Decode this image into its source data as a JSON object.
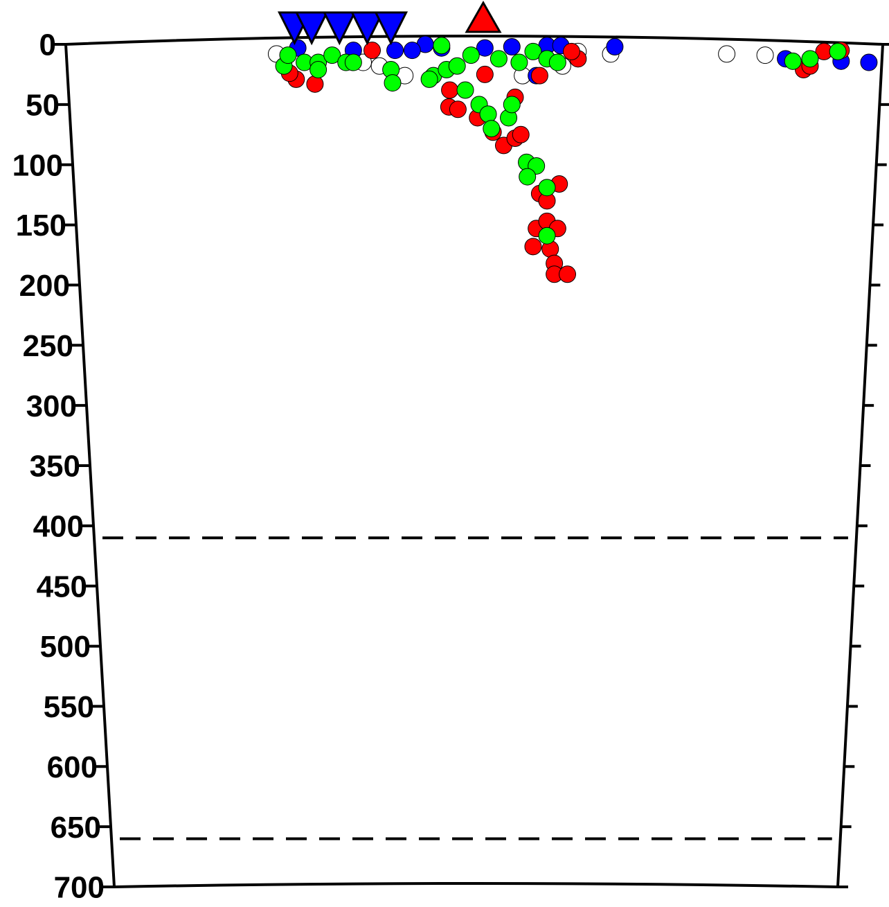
{
  "chart_data": {
    "type": "scatter",
    "xlim": [
      0,
      100
    ],
    "ylim": [
      0,
      700
    ],
    "yticks": [
      0,
      50,
      100,
      150,
      200,
      250,
      300,
      350,
      400,
      450,
      500,
      550,
      600,
      650,
      700
    ],
    "inverted_y": true,
    "reference_lines": [
      410,
      660
    ],
    "series": [
      {
        "color": "#ffffff",
        "x": [
          25.8,
          36.4,
          38.4,
          41.5,
          55.9,
          60.8,
          62.7,
          66.7,
          80.9,
          85.6
        ],
        "values": [
          8,
          15,
          18,
          26,
          26,
          18,
          6,
          8,
          8,
          9
        ]
      },
      {
        "color": "#0000ff",
        "x": [
          44,
          28.4,
          35.2,
          40.3,
          42.4,
          46,
          51.3,
          54.6,
          58.9,
          60.6,
          57.6,
          67.2,
          88.1,
          94.9,
          98.3
        ],
        "values": [
          0,
          3,
          5,
          5,
          5,
          3,
          3,
          2,
          1,
          1,
          26,
          2,
          12,
          14,
          15
        ]
      },
      {
        "color": "#ff0000",
        "x": [
          37.5,
          28.2,
          30.5,
          27.4,
          47,
          46.9,
          48,
          51.3,
          50.4,
          52.3,
          53.6,
          55,
          55,
          55.7,
          58,
          60.4,
          58,
          58.9,
          57.6,
          58.9,
          60.2,
          57.2,
          59.3,
          59.8,
          59.8,
          61.4,
          62.7,
          61.9,
          90.3,
          91.1,
          92.8,
          94.9
        ],
        "values": [
          5,
          29,
          33,
          24,
          38,
          52,
          54,
          25,
          61,
          73,
          84,
          44,
          78,
          75,
          26,
          116,
          124,
          130,
          153,
          147,
          153,
          168,
          170,
          182,
          191,
          191,
          12,
          6,
          21,
          18,
          6,
          5
        ]
      },
      {
        "color": "#00ff00",
        "x": [
          26.7,
          27.2,
          29.2,
          30.9,
          32.6,
          34.3,
          35.2,
          39.8,
          40,
          45,
          46,
          46.6,
          47.9,
          48.9,
          49.6,
          50.6,
          51.7,
          52.1,
          54.2,
          54.6,
          53,
          55.5,
          57.2,
          58.9,
          60.2,
          56.4,
          57.6,
          56.5,
          58.9,
          58.9,
          89,
          91.1,
          94.5,
          44.5,
          30.9
        ],
        "values": [
          18,
          9,
          15,
          15,
          9,
          15,
          15,
          21,
          32,
          26,
          1,
          21,
          18,
          38,
          9,
          50,
          58,
          70,
          61,
          50,
          12,
          15,
          6,
          12,
          15,
          98,
          101,
          110,
          119,
          159,
          14,
          12,
          6,
          29,
          21
        ]
      }
    ],
    "stations": {
      "color": "#0000ff",
      "x": [
        28,
        30.1,
        33.5,
        36.9,
        39.8
      ]
    },
    "volcano": {
      "color": "#ff0000",
      "x": [
        51.1
      ]
    }
  }
}
